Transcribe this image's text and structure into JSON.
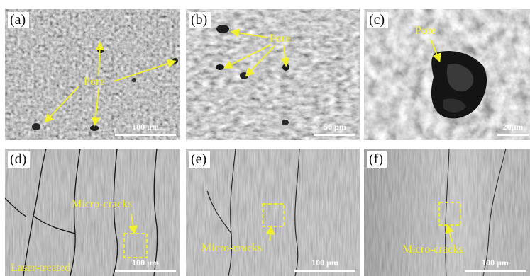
{
  "panels": [
    {
      "label": "(a)",
      "annotation": "Pore",
      "scale": "100 μm"
    },
    {
      "label": "(b)",
      "annotation": "Pore",
      "scale": "50 μm"
    },
    {
      "label": "(c)",
      "annotation": "Pore",
      "scale": "20μm"
    },
    {
      "label": "(d)",
      "annotation": "Micro-cracks",
      "note": "Laser-treated",
      "scale": "100 μm"
    },
    {
      "label": "(e)",
      "annotation": "Micro-cracks",
      "scale": "100 μm"
    },
    {
      "label": "(f)",
      "annotation": "Micro-cracks",
      "scale": "100 μm"
    }
  ],
  "colors": {
    "annotation": "#f2ef2c",
    "scalebar": "#ffffff"
  }
}
